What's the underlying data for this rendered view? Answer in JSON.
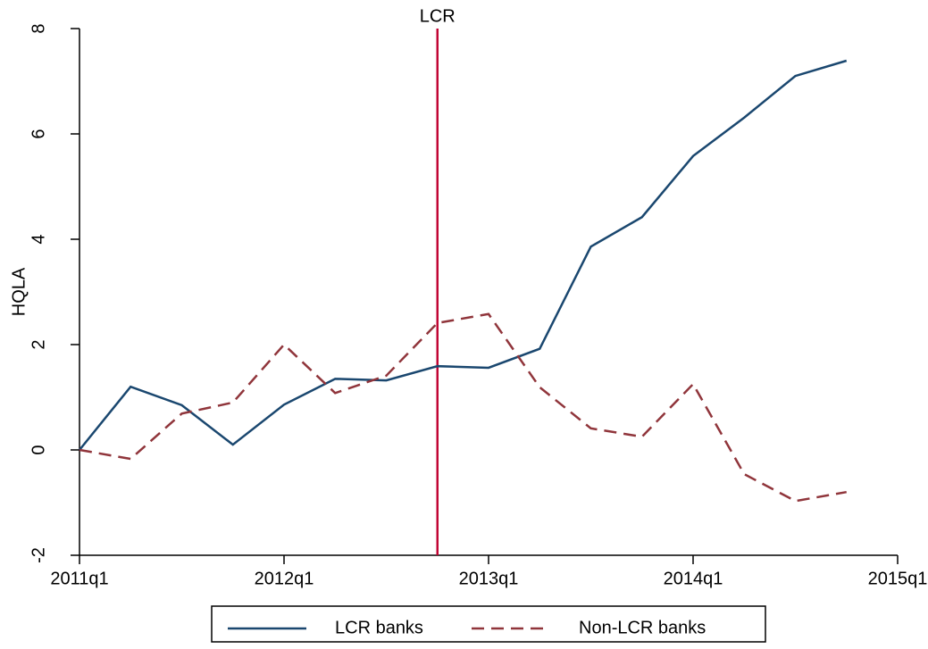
{
  "chart_data": {
    "type": "line",
    "y_label": "HQLA",
    "x": [
      "2011q1",
      "2011q2",
      "2011q3",
      "2011q4",
      "2012q1",
      "2012q2",
      "2012q3",
      "2012q4",
      "2013q1",
      "2013q2",
      "2013q3",
      "2013q4",
      "2014q1",
      "2014q2",
      "2014q3",
      "2014q4"
    ],
    "xlim": [
      "2011q1",
      "2015q1"
    ],
    "xticks": [
      "2011q1",
      "2012q1",
      "2013q1",
      "2014q1",
      "2015q1"
    ],
    "ylim": [
      -2,
      8
    ],
    "yticks": [
      -2,
      0,
      2,
      4,
      6,
      8
    ],
    "grid": false,
    "series": [
      {
        "name": "LCR banks",
        "color": "#1a476f",
        "dash": "solid",
        "values": [
          0,
          1.2,
          0.85,
          0.1,
          0.86,
          1.35,
          1.32,
          1.59,
          1.56,
          1.92,
          3.86,
          4.42,
          5.58,
          6.31,
          7.1,
          7.39
        ]
      },
      {
        "name": "Non-LCR banks",
        "color": "#90353b",
        "dash": "dashed",
        "values": [
          0,
          -0.17,
          0.69,
          0.9,
          2.0,
          1.08,
          1.41,
          2.41,
          2.58,
          1.19,
          0.41,
          0.25,
          1.25,
          -0.46,
          -0.97,
          -0.8
        ]
      }
    ],
    "vline": {
      "x": "2012q4",
      "label": "LCR",
      "color": "#c10534"
    },
    "legend": "bottom"
  }
}
